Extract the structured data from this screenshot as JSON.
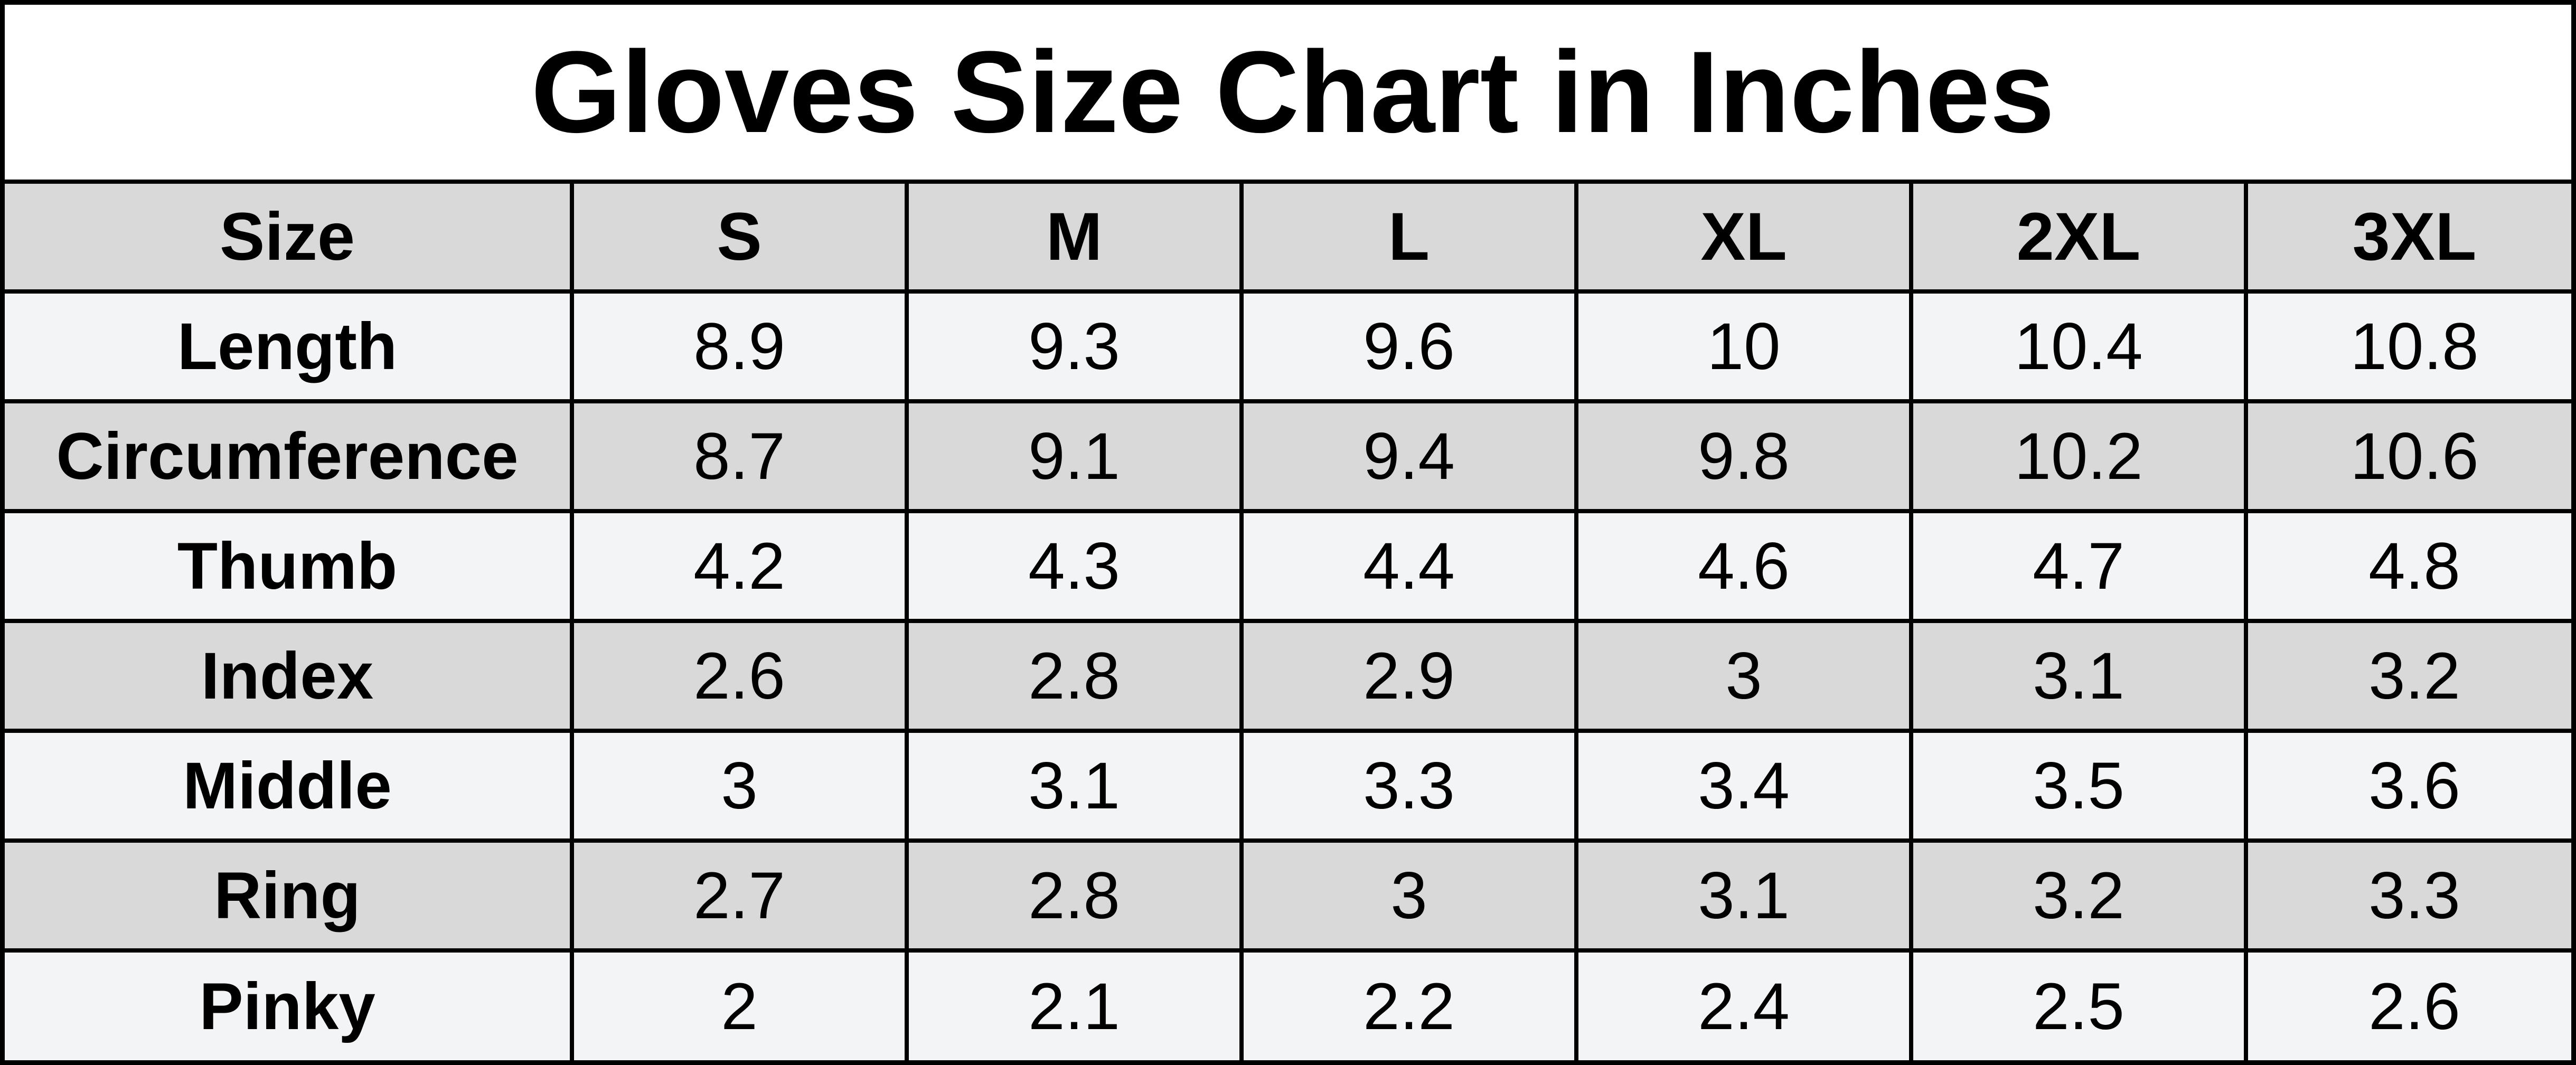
{
  "title": "Gloves Size Chart in Inches",
  "table": {
    "header": [
      "Size",
      "S",
      "M",
      "L",
      "XL",
      "2XL",
      "3XL"
    ],
    "rows": [
      [
        "Length",
        8.9,
        9.3,
        9.6,
        10,
        10.4,
        10.8
      ],
      [
        "Circumference",
        8.7,
        9.1,
        9.4,
        9.8,
        10.2,
        10.6
      ],
      [
        "Thumb",
        4.2,
        4.3,
        4.4,
        4.6,
        4.7,
        4.8
      ],
      [
        "Index",
        2.6,
        2.8,
        2.9,
        3,
        3.1,
        3.2
      ],
      [
        "Middle",
        3,
        3.1,
        3.3,
        3.4,
        3.5,
        3.6
      ],
      [
        "Ring",
        2.7,
        2.8,
        3,
        3.1,
        3.2,
        3.3
      ],
      [
        "Pinky",
        2,
        2.1,
        2.2,
        2.4,
        2.5,
        2.6
      ]
    ]
  }
}
